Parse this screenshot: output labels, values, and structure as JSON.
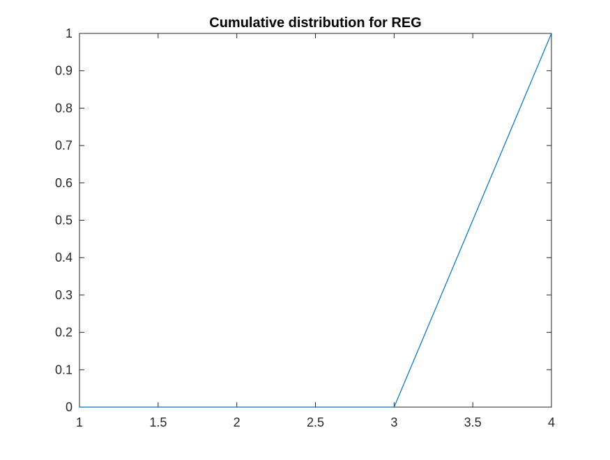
{
  "chart_data": {
    "type": "line",
    "title": "Cumulative distribution for REG",
    "xlabel": "",
    "ylabel": "",
    "xlim": [
      1,
      4
    ],
    "ylim": [
      0,
      1
    ],
    "x_ticks": [
      1,
      1.5,
      2,
      2.5,
      3,
      3.5,
      4
    ],
    "x_tick_labels": [
      "1",
      "1.5",
      "2",
      "2.5",
      "3",
      "3.5",
      "4"
    ],
    "y_ticks": [
      0,
      0.1,
      0.2,
      0.3,
      0.4,
      0.5,
      0.6,
      0.7,
      0.8,
      0.9,
      1
    ],
    "y_tick_labels": [
      "0",
      "0.1",
      "0.2",
      "0.3",
      "0.4",
      "0.5",
      "0.6",
      "0.7",
      "0.8",
      "0.9",
      "1"
    ],
    "grid": false,
    "box": true,
    "series": [
      {
        "x": [
          1,
          2,
          3,
          4
        ],
        "y": [
          0,
          0,
          0,
          1
        ],
        "color": "#0072BD"
      }
    ]
  }
}
